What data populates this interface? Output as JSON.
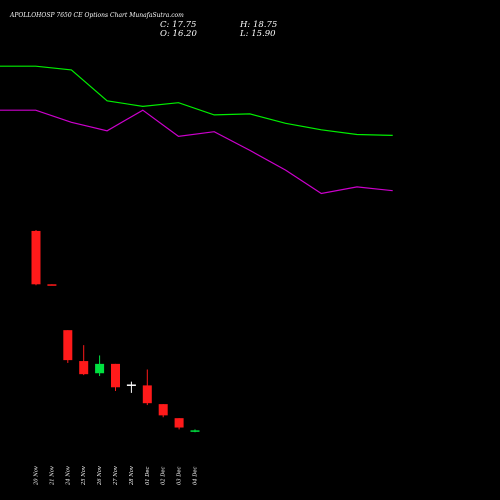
{
  "header": {
    "title": "APOLLOHOSP 7650 CE Options Chart MunafaSutra.com",
    "close": "C: 17.75",
    "open": "O: 16.20",
    "high": "H: 18.75",
    "low": "L: 15.90"
  },
  "colors": {
    "background": "#000000",
    "up": "#00e040",
    "down": "#ff1a1a",
    "neutral": "#ffffff",
    "ma_fast": "#00ee00",
    "ma_slow": "#cc00cc"
  },
  "chart_data": {
    "type": "candlestick",
    "title": "APOLLOHOSP 7650 CE Options Chart MunafaSutra.com",
    "categories": [
      "20 Nov",
      "21 Nov",
      "24 Nov",
      "25 Nov",
      "26 Nov",
      "27 Nov",
      "28 Nov",
      "01 Dec",
      "02 Dec",
      "03 Dec",
      "04 Dec"
    ],
    "candles": [
      {
        "date": "20 Nov",
        "open": 204.0,
        "high": 205.0,
        "low": 146.0,
        "close": 147.0
      },
      {
        "date": "21 Nov",
        "open": 147.0,
        "high": 147.0,
        "low": 146.0,
        "close": 146.5
      },
      {
        "date": "24 Nov",
        "open": 98.0,
        "high": 98.0,
        "low": 63.0,
        "close": 66.0
      },
      {
        "date": "25 Nov",
        "open": 65.0,
        "high": 82.0,
        "low": 50.0,
        "close": 51.0
      },
      {
        "date": "26 Nov",
        "open": 52.0,
        "high": 71.0,
        "low": 49.0,
        "close": 62.0
      },
      {
        "date": "27 Nov",
        "open": 62.0,
        "high": 62.0,
        "low": 33.0,
        "close": 37.0
      },
      {
        "date": "28 Nov",
        "open": 39.0,
        "high": 43.0,
        "low": 31.0,
        "close": 40.0
      },
      {
        "date": "01 Dec",
        "open": 39.0,
        "high": 56.0,
        "low": 18.0,
        "close": 20.0
      },
      {
        "date": "02 Dec",
        "open": 19.0,
        "high": 19.0,
        "low": 5.0,
        "close": 7.0
      },
      {
        "date": "03 Dec",
        "open": 4.0,
        "high": 4.0,
        "low": -8.0,
        "close": -6.0
      },
      {
        "date": "04 Dec",
        "open": -10.0,
        "high": -8.0,
        "low": -11.0,
        "close": -9.0
      }
    ],
    "series": [
      {
        "type": "line",
        "color": "#00ee00",
        "x": [
          0,
          1,
          2,
          3,
          4,
          5,
          6,
          7,
          8,
          9,
          10,
          11
        ],
        "values": [
          380,
          380,
          376,
          343,
          337,
          341,
          328,
          329,
          319,
          312,
          307,
          306
        ]
      },
      {
        "type": "line",
        "color": "#cc00cc",
        "x": [
          0,
          1,
          2,
          3,
          4,
          5,
          6,
          7,
          8,
          9,
          10,
          11
        ],
        "values": [
          333,
          333,
          320,
          311,
          333,
          305,
          310,
          290,
          269,
          244,
          251,
          247
        ]
      }
    ],
    "ylim": [
      -30,
      440
    ],
    "grid": false,
    "legend": "none"
  }
}
